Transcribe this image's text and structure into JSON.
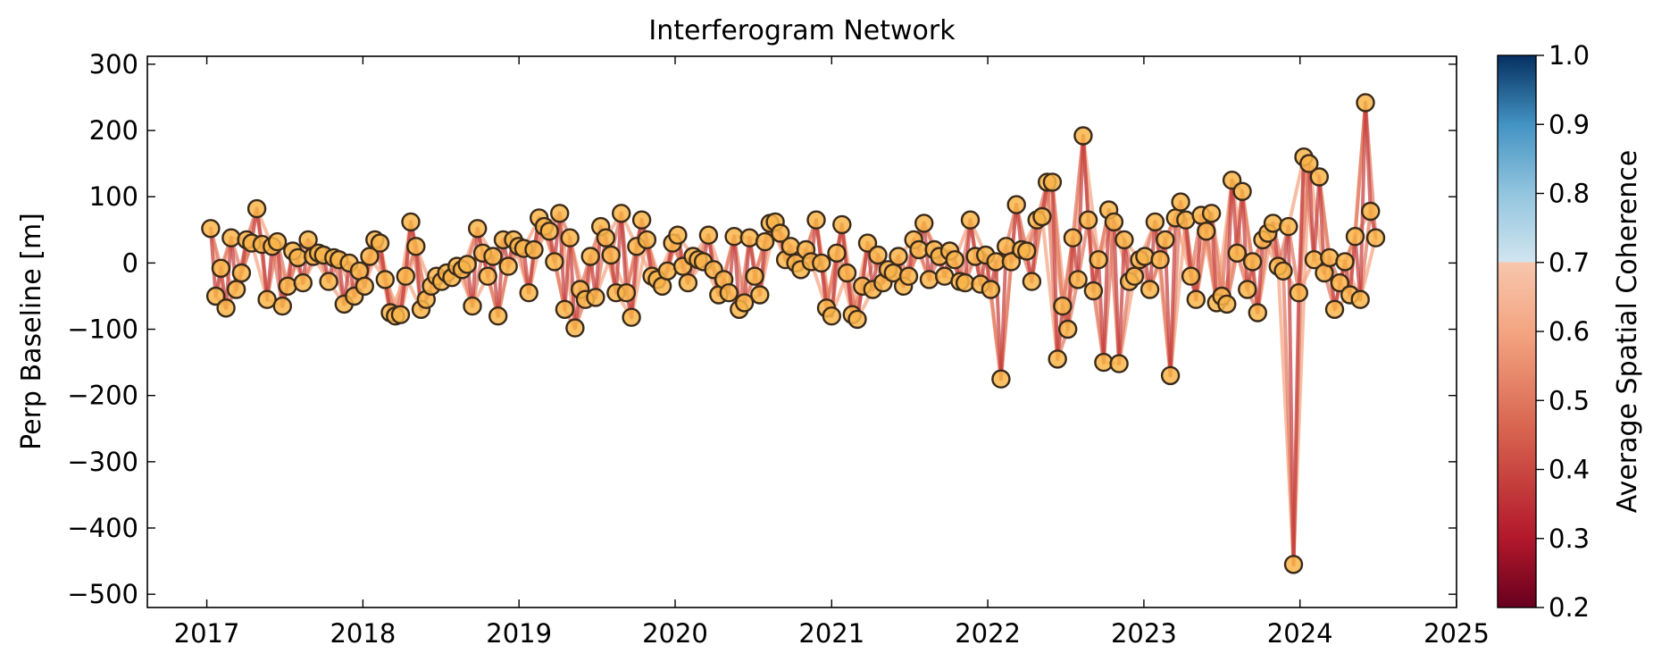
{
  "chart_data": {
    "type": "scatter",
    "title": "Interferogram Network",
    "xlabel": "",
    "ylabel": "Perp Baseline [m]",
    "colorbar_label": "Average Spatial Coherence",
    "xlim": [
      "2016-08-15",
      "2025-01-01"
    ],
    "ylim": [
      -520,
      312
    ],
    "x_ticks": [
      "2017",
      "2018",
      "2019",
      "2020",
      "2021",
      "2022",
      "2023",
      "2024",
      "2025"
    ],
    "x_tick_dates": [
      "2017-01-01",
      "2018-01-01",
      "2019-01-01",
      "2020-01-01",
      "2021-01-01",
      "2022-01-01",
      "2023-01-01",
      "2024-01-01",
      "2025-01-01"
    ],
    "y_ticks": [
      300,
      200,
      100,
      0,
      -100,
      -200,
      -300,
      -400,
      -500
    ],
    "y_tick_labels": [
      "300",
      "200",
      "100",
      "0",
      "−100",
      "−200",
      "−300",
      "−400",
      "−500"
    ],
    "colorbar_range": [
      0.2,
      1.0
    ],
    "colorbar_ticks": [
      "1.0",
      "0.9",
      "0.8",
      "0.7",
      "0.6",
      "0.5",
      "0.4",
      "0.3",
      "0.2"
    ],
    "colormap": {
      "name": "RdBu",
      "shown_below": 0.7,
      "stops": [
        {
          "v": 0.2,
          "color": "#67001f"
        },
        {
          "v": 0.3,
          "color": "#b2182b"
        },
        {
          "v": 0.45,
          "color": "#d6604d"
        },
        {
          "v": 0.6,
          "color": "#f4a582"
        },
        {
          "v": 0.7,
          "color": "#f7c6ad"
        },
        {
          "v": 0.7001,
          "color": "#d1e5f0"
        },
        {
          "v": 0.8,
          "color": "#92c5de"
        },
        {
          "v": 0.9,
          "color": "#4393c3"
        },
        {
          "v": 1.0,
          "color": "#053061"
        }
      ]
    },
    "marker_color": "#f9b54a",
    "marker_edge_color": "#3a2a1a",
    "grid": false,
    "dates": {
      "start": "2017-01-10",
      "interval_days": 12,
      "values": [
        52,
        -50,
        -8,
        -68,
        38,
        -40,
        -15,
        35,
        30,
        82,
        28,
        -55,
        25,
        32,
        -65,
        -35,
        18,
        8,
        -30,
        35,
        10,
        15,
        12,
        -28,
        8,
        5,
        -62,
        0,
        -50,
        -12,
        -35,
        10,
        35,
        30,
        -25,
        -75,
        -80,
        -78,
        -20,
        62,
        25,
        -70,
        -55,
        -35,
        -20,
        -28,
        -15,
        -22,
        -5,
        -10,
        -2,
        -65,
        52,
        15,
        -20,
        10,
        -80,
        35,
        -5,
        35,
        25,
        22,
        -45,
        20,
        68,
        55,
        48,
        2,
        75,
        -70,
        38,
        -98,
        -40,
        -55,
        10,
        -52,
        55,
        38,
        12,
        -45,
        75,
        -45,
        -82,
        25,
        65,
        35,
        -20,
        -25,
        -35,
        -12,
        30,
        42,
        -5,
        -30,
        10,
        5,
        2,
        42,
        -10,
        -48,
        -25,
        -45,
        40,
        -70,
        -60,
        38,
        -20,
        -48,
        32,
        60,
        62,
        45,
        5,
        25,
        0,
        -10,
        20,
        2,
        65,
        0,
        -68,
        -80,
        15,
        58,
        -15,
        -78,
        -85,
        -35,
        30,
        -40,
        12,
        -30,
        -10,
        -15,
        10,
        -35,
        -20,
        35,
        20,
        60,
        -25,
        20,
        10,
        -20,
        18,
        5,
        -28,
        -30,
        65,
        10,
        -32,
        12,
        -40,
        2,
        -175,
        25,
        2,
        88,
        20,
        18,
        -28,
        65,
        70,
        122,
        122,
        -145,
        -65,
        -100,
        38,
        -25,
        192,
        65,
        -42,
        5,
        -150,
        80,
        62,
        -152,
        35,
        -28,
        -20,
        5,
        10,
        -40,
        62,
        5,
        35,
        -170,
        68,
        92,
        65,
        -20,
        -55,
        72,
        48,
        75,
        -60,
        -50,
        -62,
        125,
        15,
        108,
        -40,
        2,
        -75,
        35,
        45,
        60,
        -5,
        -12,
        55,
        -455,
        -45,
        160,
        150,
        5,
        130,
        -15,
        8,
        -70,
        -30,
        2,
        -48,
        40,
        -55,
        242,
        78,
        38
      ]
    },
    "pairing": {
      "neighbors": [
        1,
        2,
        3
      ],
      "coherence_by_neighbor": [
        0.38,
        0.5,
        0.6
      ]
    }
  }
}
